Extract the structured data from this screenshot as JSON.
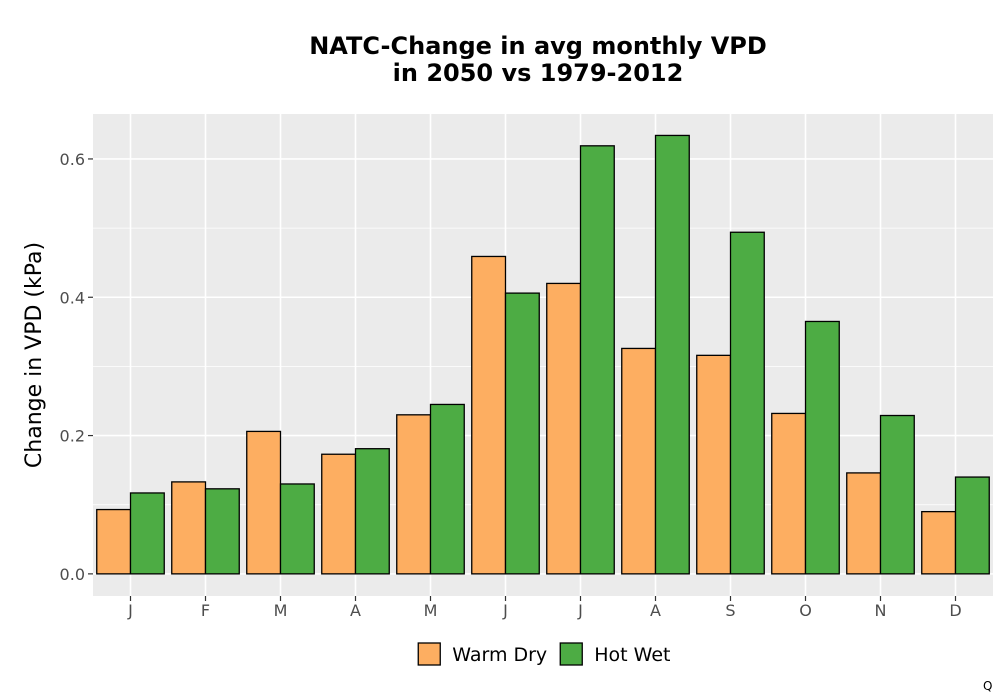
{
  "chart_data": {
    "type": "bar",
    "title_line1": "NATC-Change in avg monthly VPD",
    "title_line2": "in 2050 vs 1979-2012",
    "xlabel": "",
    "ylabel": "Change in VPD (kPa)",
    "categories": [
      "J",
      "F",
      "M",
      "A",
      "M",
      "J",
      "J",
      "A",
      "S",
      "O",
      "N",
      "D"
    ],
    "series": [
      {
        "name": "Warm Dry",
        "color": "#FDAE61",
        "values": [
          0.093,
          0.133,
          0.206,
          0.173,
          0.23,
          0.459,
          0.42,
          0.326,
          0.316,
          0.232,
          0.146,
          0.09
        ]
      },
      {
        "name": "Hot Wet",
        "color": "#4DAC44",
        "values": [
          0.117,
          0.123,
          0.13,
          0.181,
          0.245,
          0.406,
          0.619,
          0.634,
          0.494,
          0.365,
          0.229,
          0.14
        ]
      }
    ],
    "ylim": [
      -0.032,
      0.665
    ],
    "yticks": [
      "0.0",
      "0.2",
      "0.4",
      "0.6"
    ],
    "ytick_values": [
      0.0,
      0.2,
      0.4,
      0.6
    ],
    "grid": true,
    "panel_background": "#EBEBEB",
    "legend_position": "bottom"
  },
  "corner_mark": "Q"
}
